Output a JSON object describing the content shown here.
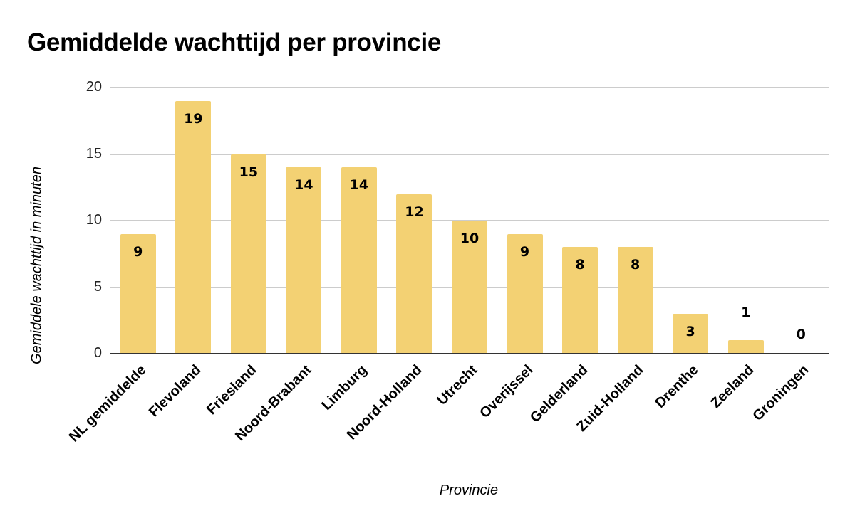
{
  "chart": {
    "title": "Gemiddelde wachttijd per provincie",
    "xlabel": "Provincie",
    "ylabel": "Gemiddele wachttijd in minuten",
    "yticks": [
      "0",
      "5",
      "10",
      "15",
      "20"
    ],
    "bar_color": "#f3d173",
    "categories": [
      "NL gemiddelde",
      "Flevoland",
      "Friesland",
      "Noord-Brabant",
      "Limburg",
      "Noord-Holland",
      "Utrecht",
      "Overijssel",
      "Gelderland",
      "Zuid-Holland",
      "Drenthe",
      "Zeeland",
      "Groningen"
    ],
    "values": [
      "9",
      "19",
      "15",
      "14",
      "14",
      "12",
      "10",
      "9",
      "8",
      "8",
      "3",
      "1",
      "0"
    ]
  },
  "chart_data": {
    "type": "bar",
    "title": "Gemiddelde wachttijd per provincie",
    "xlabel": "Provincie",
    "ylabel": "Gemiddele wachttijd in minuten",
    "categories": [
      "NL gemiddelde",
      "Flevoland",
      "Friesland",
      "Noord-Brabant",
      "Limburg",
      "Noord-Holland",
      "Utrecht",
      "Overijssel",
      "Gelderland",
      "Zuid-Holland",
      "Drenthe",
      "Zeeland",
      "Groningen"
    ],
    "values": [
      9,
      19,
      15,
      14,
      14,
      12,
      10,
      9,
      8,
      8,
      3,
      1,
      0
    ],
    "ylim": [
      0,
      20
    ],
    "yticks": [
      0,
      5,
      10,
      15,
      20
    ],
    "grid": true,
    "legend": null,
    "data_labels": true,
    "colors": [
      "#f3d173"
    ]
  }
}
